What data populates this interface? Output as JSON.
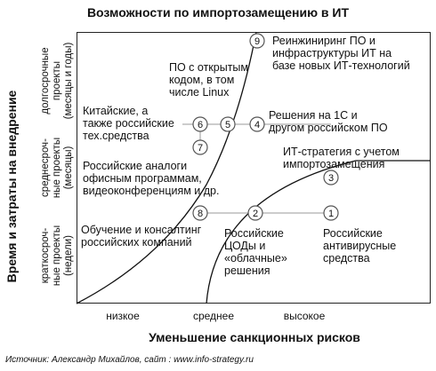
{
  "title": "Возможности по импортозамещению в ИТ",
  "y_axis_title": "Время и затраты на внедрение",
  "rows": [
    "долгосрочные\nпроекты\n(месяцы и годы)",
    "среднесроч-\nные проекты\n(месяцы)",
    "краткосроч-\nные проекты\n(недели)"
  ],
  "columns": [
    "низкое",
    "среднее",
    "высокое"
  ],
  "x_axis_title": "Уменьшение санкционных рисков",
  "source": "Источник: Александр Михайлов, сайт : www.info-strategy.ru",
  "items": [
    {
      "num": "9",
      "text": "Реинжиниринг ПО и\nинфраструктуры ИТ на\nбазе новых ИТ-технологий"
    },
    {
      "num": "5",
      "text": "ПО с открытым\nкодом, в том\nчисле Linux"
    },
    {
      "num": "6",
      "text": "Китайские, а\nтакже российские\nтех.средства"
    },
    {
      "num": "4",
      "text": "Решения на 1С и\nдругом российском ПО"
    },
    {
      "num": "7",
      "text": "Российские аналоги\nофисным программам,\nвидеоконференциям и др."
    },
    {
      "num": "3",
      "text": "ИТ-стратегия с учетом\nимпортозамещения"
    },
    {
      "num": "8",
      "text": "Обучение и консалтинг\nроссийских компаний"
    },
    {
      "num": "2",
      "text": "Российские\nЦОДы и\n«облачные»\nрешения"
    },
    {
      "num": "1",
      "text": "Российские\nантивирусные\nсредства"
    }
  ]
}
